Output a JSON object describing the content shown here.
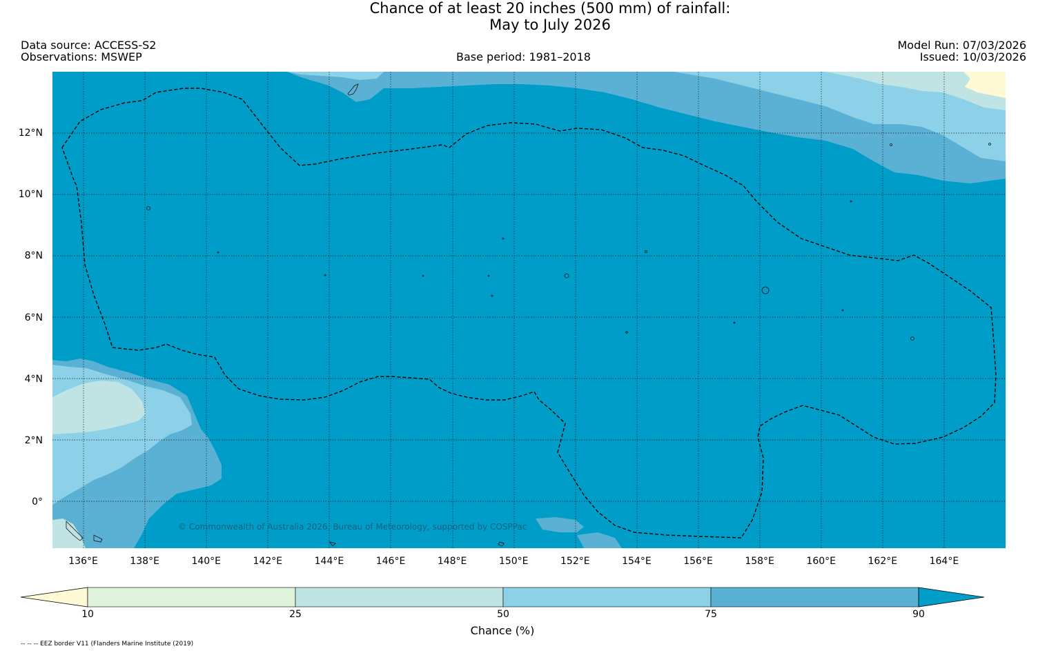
{
  "header": {
    "title_line1": "Chance of at least 20 inches (500  mm) of rainfall:",
    "title_line2": "May to July 2026",
    "data_source": "Data source: ACCESS-S2",
    "observations": "Observations: MSWEP",
    "base_period": "Base period: 1981–2018",
    "model_run": "Model Run: 07/03/2026",
    "issued": "Issued: 10/03/2026"
  },
  "map": {
    "extent": {
      "lon_min": 135.0,
      "lon_max": 166.0,
      "lat_min": -1.5,
      "lat_max": 14.0
    },
    "lon_ticks": [
      {
        "value": 136,
        "label": "136°E"
      },
      {
        "value": 138,
        "label": "138°E"
      },
      {
        "value": 140,
        "label": "140°E"
      },
      {
        "value": 142,
        "label": "142°E"
      },
      {
        "value": 144,
        "label": "144°E"
      },
      {
        "value": 146,
        "label": "146°E"
      },
      {
        "value": 148,
        "label": "148°E"
      },
      {
        "value": 150,
        "label": "150°E"
      },
      {
        "value": 152,
        "label": "152°E"
      },
      {
        "value": 154,
        "label": "154°E"
      },
      {
        "value": 156,
        "label": "156°E"
      },
      {
        "value": 158,
        "label": "158°E"
      },
      {
        "value": 160,
        "label": "160°E"
      },
      {
        "value": 162,
        "label": "162°E"
      },
      {
        "value": 164,
        "label": "164°E"
      }
    ],
    "lat_ticks": [
      {
        "value": 12,
        "label": "12°N"
      },
      {
        "value": 10,
        "label": "10°N"
      },
      {
        "value": 8,
        "label": "8°N"
      },
      {
        "value": 6,
        "label": "6°N"
      },
      {
        "value": 4,
        "label": "4°N"
      },
      {
        "value": 2,
        "label": "2°N"
      },
      {
        "value": 0,
        "label": "0°"
      }
    ],
    "copyright": "© Commonwealth of Australia 2026, Bureau of Meteorology, supported by COSPPac"
  },
  "colorbar": {
    "title": "Chance (%)",
    "ticks": [
      "10",
      "25",
      "50",
      "75",
      "90"
    ],
    "colors": {
      "below_10": "#fefad5",
      "10_25": "#ddf4da",
      "25_50": "#c0e3e3",
      "50_75": "#8dd1e8",
      "75_90": "#5ab1d4",
      "above_90": "#009dc9"
    }
  },
  "footer": {
    "eez_note": "-- -- -- EEZ border V11 (Flanders Marine Institute (2019)"
  }
}
